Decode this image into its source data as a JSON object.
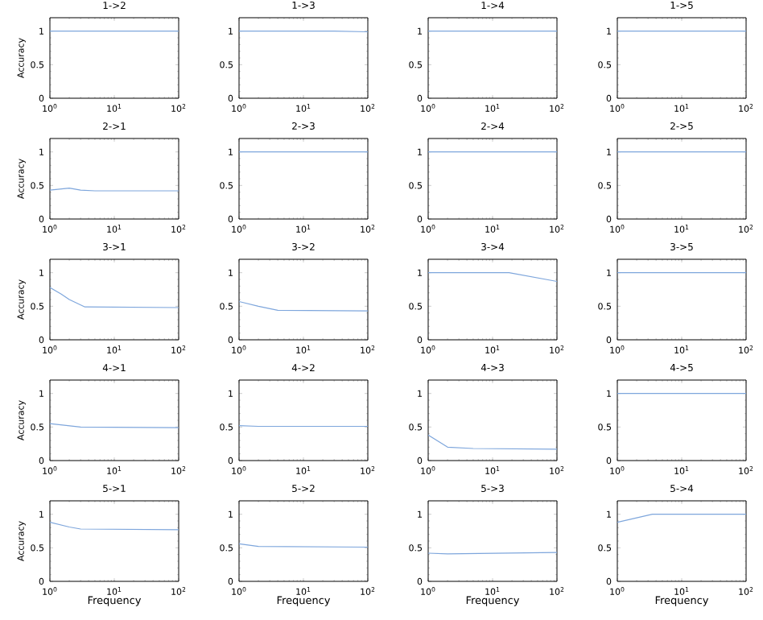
{
  "chart_data": [
    {
      "type": "line",
      "title": "1->2",
      "ylabel": "Accuracy",
      "x": [
        1,
        100
      ],
      "values": [
        1,
        1
      ],
      "color": "#7ea6dc",
      "log": "x",
      "xlim": [
        1,
        100
      ],
      "ylim": [
        0,
        1.2
      ],
      "xticks": [
        {
          "value": 1,
          "label": "10$^{0}$"
        },
        {
          "value": 10,
          "label": "10$^{1}$"
        },
        {
          "value": 100,
          "label": "10$^{2}$"
        }
      ],
      "yticks": [
        0,
        0.5,
        1
      ]
    },
    {
      "type": "line",
      "title": "1->3",
      "x": [
        1,
        30,
        100
      ],
      "values": [
        1,
        1,
        0.99
      ],
      "color": "#7ea6dc",
      "log": "x",
      "xlim": [
        1,
        100
      ],
      "ylim": [
        0,
        1.2
      ],
      "xticks": [
        {
          "value": 1,
          "label": "10$^{0}$"
        },
        {
          "value": 10,
          "label": "10$^{1}$"
        },
        {
          "value": 100,
          "label": "10$^{2}$"
        }
      ],
      "yticks": [
        0,
        0.5,
        1
      ]
    },
    {
      "type": "line",
      "title": "1->4",
      "x": [
        1,
        100
      ],
      "values": [
        1,
        1
      ],
      "color": "#7ea6dc",
      "log": "x",
      "xlim": [
        1,
        100
      ],
      "ylim": [
        0,
        1.2
      ],
      "xticks": [
        {
          "value": 1,
          "label": "10$^{0}$"
        },
        {
          "value": 10,
          "label": "10$^{1}$"
        },
        {
          "value": 100,
          "label": "10$^{2}$"
        }
      ],
      "yticks": [
        0,
        0.5,
        1
      ]
    },
    {
      "type": "line",
      "title": "1->5",
      "x": [
        1,
        100
      ],
      "values": [
        1,
        1
      ],
      "color": "#7ea6dc",
      "log": "x",
      "xlim": [
        1,
        100
      ],
      "ylim": [
        0,
        1.2
      ],
      "xticks": [
        {
          "value": 1,
          "label": "10$^{0}$"
        },
        {
          "value": 10,
          "label": "10$^{1}$"
        },
        {
          "value": 100,
          "label": "10$^{2}$"
        }
      ],
      "yticks": [
        0,
        0.5,
        1
      ]
    },
    {
      "type": "line",
      "title": "2->1",
      "ylabel": "Accuracy",
      "x": [
        1,
        2,
        3,
        5,
        100
      ],
      "values": [
        0.43,
        0.46,
        0.43,
        0.42,
        0.42
      ],
      "color": "#7ea6dc",
      "log": "x",
      "xlim": [
        1,
        100
      ],
      "ylim": [
        0,
        1.2
      ],
      "xticks": [
        {
          "value": 1,
          "label": "10$^{0}$"
        },
        {
          "value": 10,
          "label": "10$^{1}$"
        },
        {
          "value": 100,
          "label": "10$^{2}$"
        }
      ],
      "yticks": [
        0,
        0.5,
        1
      ]
    },
    {
      "type": "line",
      "title": "2->3",
      "x": [
        1,
        100
      ],
      "values": [
        1,
        1
      ],
      "color": "#7ea6dc",
      "log": "x",
      "xlim": [
        1,
        100
      ],
      "ylim": [
        0,
        1.2
      ],
      "xticks": [
        {
          "value": 1,
          "label": "10$^{0}$"
        },
        {
          "value": 10,
          "label": "10$^{1}$"
        },
        {
          "value": 100,
          "label": "10$^{2}$"
        }
      ],
      "yticks": [
        0,
        0.5,
        1
      ]
    },
    {
      "type": "line",
      "title": "2->4",
      "x": [
        1,
        100
      ],
      "values": [
        1,
        1
      ],
      "color": "#7ea6dc",
      "log": "x",
      "xlim": [
        1,
        100
      ],
      "ylim": [
        0,
        1.2
      ],
      "xticks": [
        {
          "value": 1,
          "label": "10$^{0}$"
        },
        {
          "value": 10,
          "label": "10$^{1}$"
        },
        {
          "value": 100,
          "label": "10$^{2}$"
        }
      ],
      "yticks": [
        0,
        0.5,
        1
      ]
    },
    {
      "type": "line",
      "title": "2->5",
      "x": [
        1,
        100
      ],
      "values": [
        1,
        1
      ],
      "color": "#7ea6dc",
      "log": "x",
      "xlim": [
        1,
        100
      ],
      "ylim": [
        0,
        1.2
      ],
      "xticks": [
        {
          "value": 1,
          "label": "10$^{0}$"
        },
        {
          "value": 10,
          "label": "10$^{1}$"
        },
        {
          "value": 100,
          "label": "10$^{2}$"
        }
      ],
      "yticks": [
        0,
        0.5,
        1
      ]
    },
    {
      "type": "line",
      "title": "3->1",
      "ylabel": "Accuracy",
      "x": [
        1,
        1.5,
        2,
        3.5,
        100
      ],
      "values": [
        0.78,
        0.68,
        0.6,
        0.49,
        0.48
      ],
      "color": "#7ea6dc",
      "log": "x",
      "xlim": [
        1,
        100
      ],
      "ylim": [
        0,
        1.2
      ],
      "xticks": [
        {
          "value": 1,
          "label": "10$^{0}$"
        },
        {
          "value": 10,
          "label": "10$^{1}$"
        },
        {
          "value": 100,
          "label": "10$^{2}$"
        }
      ],
      "yticks": [
        0,
        0.5,
        1
      ]
    },
    {
      "type": "line",
      "title": "3->2",
      "x": [
        1,
        2,
        4,
        100
      ],
      "values": [
        0.57,
        0.5,
        0.44,
        0.43
      ],
      "color": "#7ea6dc",
      "log": "x",
      "xlim": [
        1,
        100
      ],
      "ylim": [
        0,
        1.2
      ],
      "xticks": [
        {
          "value": 1,
          "label": "10$^{0}$"
        },
        {
          "value": 10,
          "label": "10$^{1}$"
        },
        {
          "value": 100,
          "label": "10$^{2}$"
        }
      ],
      "yticks": [
        0,
        0.5,
        1
      ]
    },
    {
      "type": "line",
      "title": "3->4",
      "x": [
        1,
        18,
        100
      ],
      "values": [
        1,
        1,
        0.87
      ],
      "color": "#7ea6dc",
      "log": "x",
      "xlim": [
        1,
        100
      ],
      "ylim": [
        0,
        1.2
      ],
      "xticks": [
        {
          "value": 1,
          "label": "10$^{0}$"
        },
        {
          "value": 10,
          "label": "10$^{1}$"
        },
        {
          "value": 100,
          "label": "10$^{2}$"
        }
      ],
      "yticks": [
        0,
        0.5,
        1
      ]
    },
    {
      "type": "line",
      "title": "3->5",
      "x": [
        1,
        100
      ],
      "values": [
        1,
        1
      ],
      "color": "#7ea6dc",
      "log": "x",
      "xlim": [
        1,
        100
      ],
      "ylim": [
        0,
        1.2
      ],
      "xticks": [
        {
          "value": 1,
          "label": "10$^{0}$"
        },
        {
          "value": 10,
          "label": "10$^{1}$"
        },
        {
          "value": 100,
          "label": "10$^{2}$"
        }
      ],
      "yticks": [
        0,
        0.5,
        1
      ]
    },
    {
      "type": "line",
      "title": "4->1",
      "ylabel": "Accuracy",
      "x": [
        1,
        3,
        100
      ],
      "values": [
        0.55,
        0.5,
        0.49
      ],
      "color": "#7ea6dc",
      "log": "x",
      "xlim": [
        1,
        100
      ],
      "ylim": [
        0,
        1.2
      ],
      "xticks": [
        {
          "value": 1,
          "label": "10$^{0}$"
        },
        {
          "value": 10,
          "label": "10$^{1}$"
        },
        {
          "value": 100,
          "label": "10$^{2}$"
        }
      ],
      "yticks": [
        0,
        0.5,
        1
      ]
    },
    {
      "type": "line",
      "title": "4->2",
      "x": [
        1,
        2,
        100
      ],
      "values": [
        0.52,
        0.51,
        0.51
      ],
      "color": "#7ea6dc",
      "log": "x",
      "xlim": [
        1,
        100
      ],
      "ylim": [
        0,
        1.2
      ],
      "xticks": [
        {
          "value": 1,
          "label": "10$^{0}$"
        },
        {
          "value": 10,
          "label": "10$^{1}$"
        },
        {
          "value": 100,
          "label": "10$^{2}$"
        }
      ],
      "yticks": [
        0,
        0.5,
        1
      ]
    },
    {
      "type": "line",
      "title": "4->3",
      "x": [
        1,
        2,
        5,
        100
      ],
      "values": [
        0.38,
        0.2,
        0.18,
        0.17
      ],
      "color": "#7ea6dc",
      "log": "x",
      "xlim": [
        1,
        100
      ],
      "ylim": [
        0,
        1.2
      ],
      "xticks": [
        {
          "value": 1,
          "label": "10$^{0}$"
        },
        {
          "value": 10,
          "label": "10$^{1}$"
        },
        {
          "value": 100,
          "label": "10$^{2}$"
        }
      ],
      "yticks": [
        0,
        0.5,
        1
      ]
    },
    {
      "type": "line",
      "title": "4->5",
      "x": [
        1,
        100
      ],
      "values": [
        1,
        1
      ],
      "color": "#7ea6dc",
      "log": "x",
      "xlim": [
        1,
        100
      ],
      "ylim": [
        0,
        1.2
      ],
      "xticks": [
        {
          "value": 1,
          "label": "10$^{0}$"
        },
        {
          "value": 10,
          "label": "10$^{1}$"
        },
        {
          "value": 100,
          "label": "10$^{2}$"
        }
      ],
      "yticks": [
        0,
        0.5,
        1
      ]
    },
    {
      "type": "line",
      "title": "5->1",
      "ylabel": "Accuracy",
      "xlabel": "Frequency",
      "x": [
        1,
        2,
        3,
        100
      ],
      "values": [
        0.88,
        0.81,
        0.78,
        0.77
      ],
      "color": "#7ea6dc",
      "log": "x",
      "xlim": [
        1,
        100
      ],
      "ylim": [
        0,
        1.2
      ],
      "xticks": [
        {
          "value": 1,
          "label": "10$^{0}$"
        },
        {
          "value": 10,
          "label": "10$^{1}$"
        },
        {
          "value": 100,
          "label": "10$^{2}$"
        }
      ],
      "yticks": [
        0,
        0.5,
        1
      ]
    },
    {
      "type": "line",
      "title": "5->2",
      "xlabel": "Frequency",
      "x": [
        1,
        2,
        100
      ],
      "values": [
        0.56,
        0.52,
        0.51
      ],
      "color": "#7ea6dc",
      "log": "x",
      "xlim": [
        1,
        100
      ],
      "ylim": [
        0,
        1.2
      ],
      "xticks": [
        {
          "value": 1,
          "label": "10$^{0}$"
        },
        {
          "value": 10,
          "label": "10$^{1}$"
        },
        {
          "value": 100,
          "label": "10$^{2}$"
        }
      ],
      "yticks": [
        0,
        0.5,
        1
      ]
    },
    {
      "type": "line",
      "title": "5->3",
      "xlabel": "Frequency",
      "x": [
        1,
        2,
        100
      ],
      "values": [
        0.42,
        0.41,
        0.43
      ],
      "color": "#7ea6dc",
      "log": "x",
      "xlim": [
        1,
        100
      ],
      "ylim": [
        0,
        1.2
      ],
      "xticks": [
        {
          "value": 1,
          "label": "10$^{0}$"
        },
        {
          "value": 10,
          "label": "10$^{1}$"
        },
        {
          "value": 100,
          "label": "10$^{2}$"
        }
      ],
      "yticks": [
        0,
        0.5,
        1
      ]
    },
    {
      "type": "line",
      "title": "5->4",
      "xlabel": "Frequency",
      "x": [
        1,
        3.5,
        100
      ],
      "values": [
        0.88,
        1,
        1
      ],
      "color": "#7ea6dc",
      "log": "x",
      "xlim": [
        1,
        100
      ],
      "ylim": [
        0,
        1.2
      ],
      "xticks": [
        {
          "value": 1,
          "label": "10$^{0}$"
        },
        {
          "value": 10,
          "label": "10$^{1}$"
        },
        {
          "value": 100,
          "label": "10$^{2}$"
        }
      ],
      "yticks": [
        0,
        0.5,
        1
      ]
    }
  ]
}
